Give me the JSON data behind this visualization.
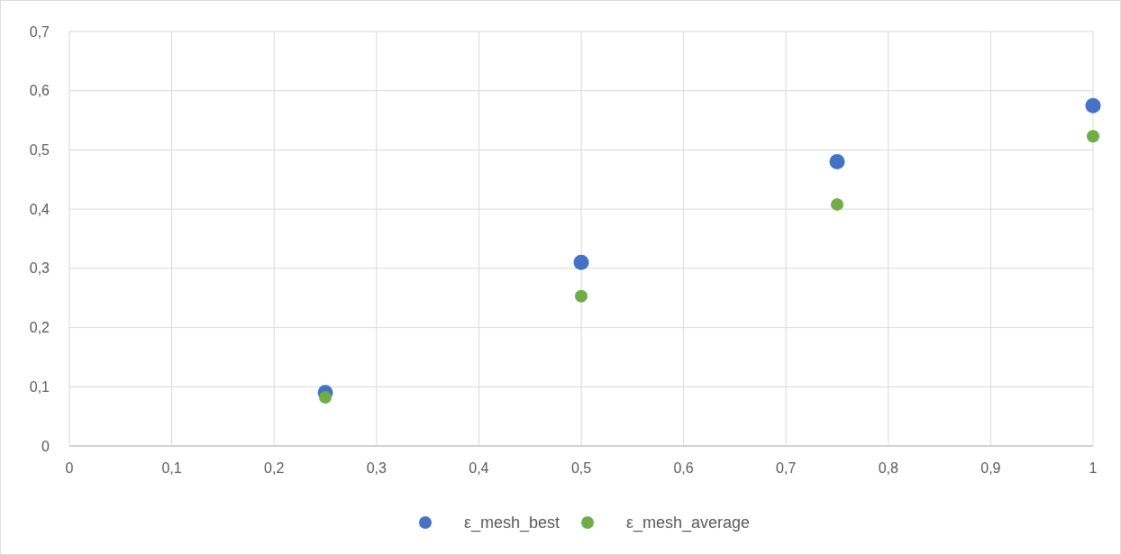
{
  "chart_data": {
    "type": "scatter",
    "x": [
      0.25,
      0.5,
      0.75,
      1
    ],
    "series": [
      {
        "name": "ε_mesh_best",
        "color": "#4472c4",
        "values": [
          0.09,
          0.31,
          0.48,
          0.575
        ]
      },
      {
        "name": "ε_mesh_average",
        "color": "#70ad47",
        "values": [
          0.082,
          0.253,
          0.408,
          0.523
        ]
      }
    ],
    "xlim": [
      0,
      1
    ],
    "xticks": [
      0,
      {
        "value": 0.1,
        "label": "0,1"
      },
      {
        "value": 0.2,
        "label": "0,2"
      },
      {
        "value": 0.3,
        "label": "0,3"
      },
      {
        "value": 0.4,
        "label": "0,4"
      },
      {
        "value": 0.5,
        "label": "0,5"
      },
      {
        "value": 0.6,
        "label": "0,6"
      },
      {
        "value": 0.7,
        "label": "0,7"
      },
      {
        "value": 0.8,
        "label": "0,8"
      },
      {
        "value": 0.9,
        "label": "0,9"
      },
      1
    ],
    "ylim": [
      0,
      0.7
    ],
    "yticks": [
      0,
      {
        "value": 0.1,
        "label": "0,1"
      },
      {
        "value": 0.2,
        "label": "0,2"
      },
      {
        "value": 0.3,
        "label": "0,3"
      },
      {
        "value": 0.4,
        "label": "0,4"
      },
      {
        "value": 0.5,
        "label": "0,5"
      },
      {
        "value": 0.6,
        "label": "0,6"
      },
      {
        "value": 0.7,
        "label": "0,7"
      }
    ],
    "grid": true,
    "legend": "bottom",
    "marker": "circle"
  }
}
